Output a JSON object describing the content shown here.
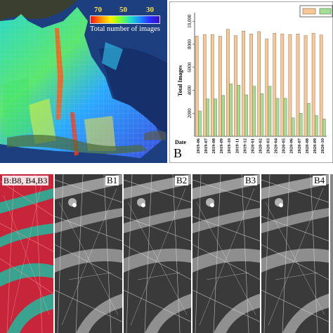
{
  "map_panel": {
    "legend": {
      "tick_labels": [
        "70",
        "50",
        "30"
      ],
      "title": "Total number of images"
    }
  },
  "chart_panel": {
    "panel_letter": "B",
    "x_axis_label": "Date",
    "y_axis_label": "Total Images"
  },
  "chart_data": {
    "type": "bar",
    "categories": [
      "2019-06",
      "2019-07",
      "2019-08",
      "2019-09",
      "2019-10",
      "2019-11",
      "2019-12",
      "2020-01",
      "2020-02",
      "2020-03",
      "2020-04",
      "2020-05",
      "2020-06",
      "2020-07",
      "2020-08",
      "2020-09",
      "2020-10"
    ],
    "series": [
      {
        "values": [
          8700,
          8850,
          8850,
          8700,
          9300,
          8750,
          9150,
          8900,
          9100,
          8450,
          8950,
          8900,
          8850,
          8900,
          8750,
          8950,
          8800
        ]
      },
      {
        "values": [
          2200,
          3250,
          3250,
          3550,
          4550,
          4450,
          3600,
          4350,
          3700,
          4350,
          3300,
          3300,
          1600,
          2000,
          2850,
          1800,
          1500
        ]
      }
    ],
    "y_ticks": [
      "2000",
      "4000",
      "6000",
      "8000",
      "10,000"
    ],
    "ylim": [
      0,
      10500
    ],
    "colors": [
      "#f7c796",
      "#a4dd96"
    ]
  },
  "bottom_panels": {
    "composite_label": "B:B8, B4,B3",
    "band_labels": [
      "B1",
      "B2",
      "B3",
      "B4"
    ]
  }
}
